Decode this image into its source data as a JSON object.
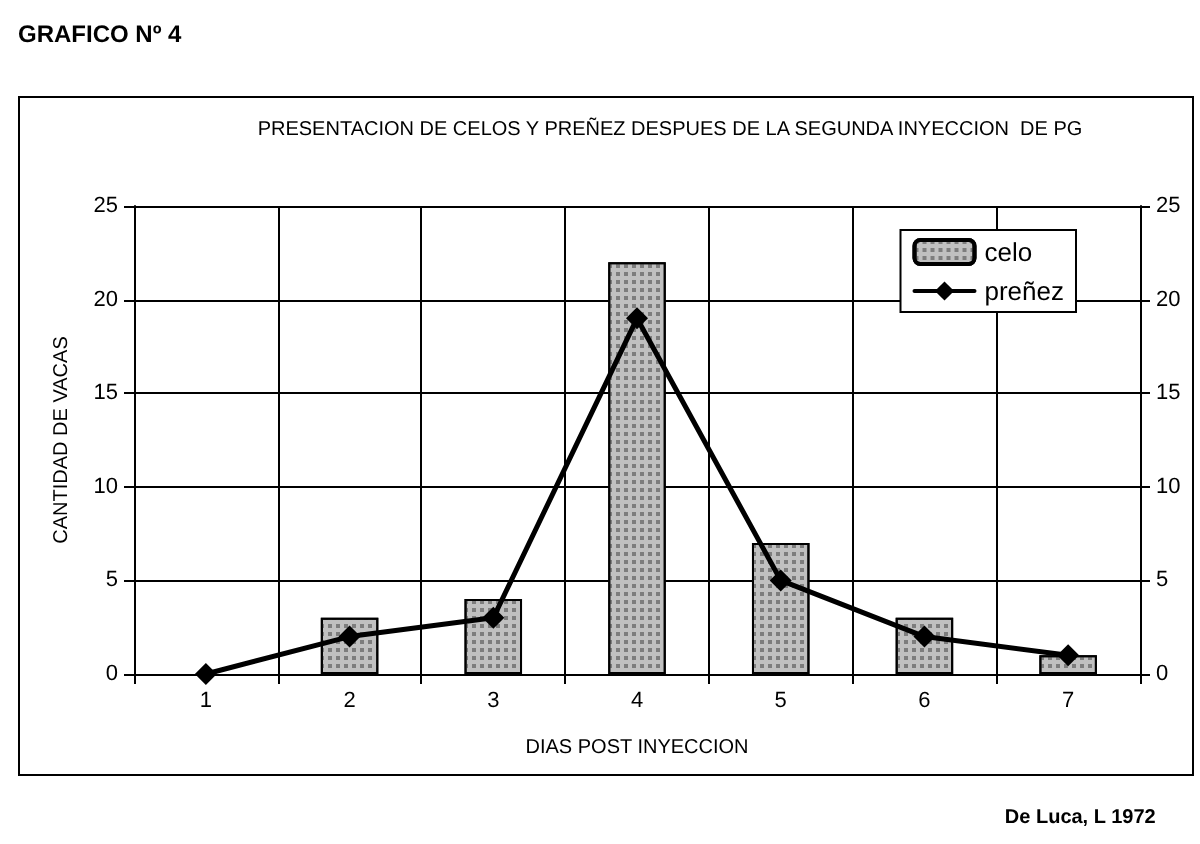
{
  "chart_data": {
    "type": "bar",
    "title": "GRAFICO Nº 4",
    "subtitle": "PRESENTACION DE CELOS Y PREÑEZ DESPUES DE LA SEGUNDA INYECCION  DE PG",
    "xlabel": "DIAS POST INYECCION",
    "ylabel": "CANTIDAD DE VACAS",
    "categories": [
      "1",
      "2",
      "3",
      "4",
      "5",
      "6",
      "7"
    ],
    "series": [
      {
        "name": "celo",
        "color": "#c0c0c0",
        "values": [
          0,
          3,
          4,
          22,
          7,
          3,
          1
        ]
      },
      {
        "name": "preñez",
        "type": "line",
        "color": "#000000",
        "marker": "diamond",
        "values": [
          0,
          2,
          3,
          19,
          5,
          2,
          1
        ]
      }
    ],
    "ylim": [
      0,
      25
    ],
    "yticks": [
      0,
      5,
      10,
      15,
      20,
      25
    ],
    "y2lim": [
      0,
      25
    ],
    "y2ticks": [
      0,
      5,
      10,
      15,
      20,
      25
    ],
    "grid": true,
    "legend": "top right",
    "annotations": [
      "De Luca, L 1972"
    ]
  }
}
